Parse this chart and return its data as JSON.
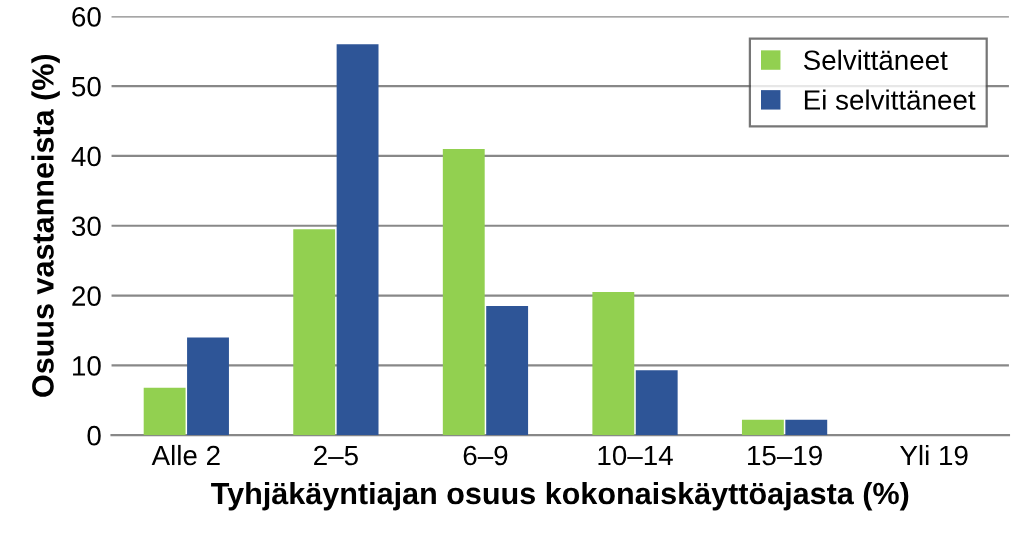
{
  "chart_data": {
    "type": "bar",
    "xlabel": "Tyhjäkäyntiajan osuus kokonaiskäyttöajasta (%)",
    "ylabel": "Osuus vastanneista (%)",
    "categories": [
      "Alle 2",
      "2–5",
      "6–9",
      "10–14",
      "15–19",
      "Yli 19"
    ],
    "series": [
      {
        "name": "Selvittäneet",
        "color": "#92d050",
        "values": [
          6.8,
          29.5,
          41,
          20.5,
          2.2,
          0
        ]
      },
      {
        "name": "Ei selvittäneet",
        "color": "#2e5597",
        "values": [
          14,
          56,
          18.5,
          9.3,
          2.2,
          0
        ]
      }
    ],
    "ylim": [
      0,
      60
    ],
    "yticks": [
      0,
      10,
      20,
      30,
      40,
      50,
      60
    ],
    "grid": "y",
    "legend": "top right"
  }
}
